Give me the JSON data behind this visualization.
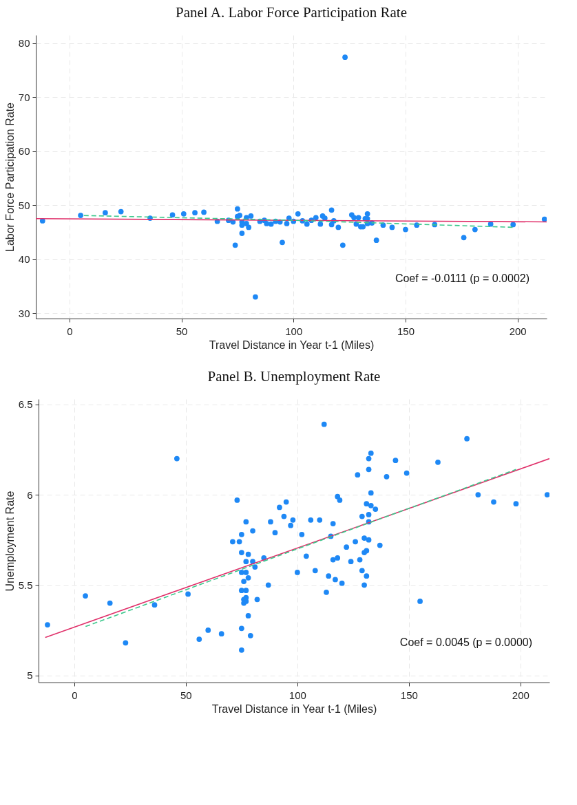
{
  "chart_data": [
    {
      "type": "scatter",
      "title": "Panel A. Labor Force Participation Rate",
      "xlabel": "Travel Distance in Year t-1 (Miles)",
      "ylabel": "Labor Force Participation Rate",
      "xlim": [
        -15,
        213
      ],
      "ylim": [
        29,
        81.5
      ],
      "xticks": [
        0,
        50,
        100,
        150,
        200
      ],
      "yticks": [
        30,
        40,
        50,
        60,
        70,
        80
      ],
      "grid": true,
      "annotations": [
        "Coef =   -0.0111 (p =    0.0002)"
      ],
      "series": [
        {
          "type": "scatter",
          "marker": "circle",
          "color": "#1e88f5",
          "x": [
            -12,
            5,
            16,
            23,
            36,
            46,
            51,
            56,
            60,
            66,
            71,
            73,
            75,
            75,
            76,
            79,
            81,
            77,
            77,
            80,
            79,
            77,
            74,
            83,
            85,
            87,
            88,
            90,
            92,
            94,
            95,
            97,
            98,
            100,
            102,
            104,
            106,
            108,
            110,
            112,
            113,
            114,
            117,
            118,
            117,
            120,
            122,
            126,
            127,
            129,
            128,
            130,
            131,
            133,
            132,
            133,
            133,
            135,
            137,
            140,
            144,
            150,
            155,
            163,
            176,
            181,
            188,
            198,
            212,
            123
          ],
          "values": [
            47.1,
            48.1,
            48.6,
            48.8,
            47.6,
            48.2,
            48.4,
            48.6,
            48.7,
            47.0,
            47.2,
            46.9,
            49.3,
            47.9,
            48.1,
            47.7,
            48.0,
            46.9,
            46.3,
            45.9,
            46.6,
            44.8,
            42.6,
            33.0,
            47.0,
            47.2,
            46.6,
            46.5,
            47.0,
            46.9,
            43.1,
            46.6,
            47.6,
            47.0,
            48.4,
            47.1,
            46.5,
            47.2,
            47.7,
            46.5,
            48.0,
            47.6,
            49.1,
            47.1,
            46.4,
            45.9,
            42.6,
            48.2,
            47.7,
            47.7,
            46.5,
            46.0,
            46.0,
            48.4,
            47.5,
            47.5,
            46.6,
            46.7,
            43.5,
            46.3,
            45.9,
            45.5,
            46.3,
            46.4,
            44.0,
            45.5,
            46.5,
            46.4,
            47.4,
            77.4
          ]
        },
        {
          "type": "line",
          "color": "#e0306a",
          "line_style": "solid",
          "x": [
            -15,
            213
          ],
          "values": [
            47.5,
            46.9
          ]
        },
        {
          "type": "line",
          "color": "#3cc88c",
          "line_style": "dashed",
          "x": [
            5,
            100,
            198
          ],
          "values": [
            48.1,
            47.2,
            45.9
          ]
        }
      ]
    },
    {
      "type": "scatter",
      "title": "Panel B. Unemployment Rate",
      "xlabel": "Travel Distance in Year t-1 (Miles)",
      "ylabel": "Unemployment Rate",
      "xlim": [
        -16,
        213
      ],
      "ylim": [
        4.96,
        6.53
      ],
      "xticks": [
        0,
        50,
        100,
        150,
        200
      ],
      "yticks": [
        {
          "value": 5,
          "label": "5"
        },
        5.5,
        {
          "value": 6,
          "label": "6"
        },
        6.5
      ],
      "grid": true,
      "annotations": [
        "Coef =    0.0045 (p =    0.0000)"
      ],
      "series": [
        {
          "type": "scatter",
          "marker": "circle",
          "color": "#1e88f5",
          "x": [
            -12,
            5,
            16,
            23,
            36,
            46,
            51,
            56,
            60,
            66,
            73,
            75,
            75,
            79,
            78,
            77,
            75,
            74,
            71,
            75,
            78,
            77,
            80,
            81,
            85,
            80,
            75,
            77,
            76,
            78,
            87,
            75,
            77,
            76,
            77,
            77,
            76,
            82,
            88,
            90,
            92,
            95,
            94,
            97,
            98,
            102,
            106,
            110,
            116,
            115,
            112,
            118,
            119,
            104,
            100,
            108,
            114,
            117,
            120,
            113,
            122,
            124,
            126,
            116,
            118,
            128,
            129,
            131,
            130,
            130,
            132,
            130,
            131,
            137,
            129,
            132,
            132,
            131,
            133,
            135,
            133,
            127,
            132,
            132,
            133,
            140,
            144,
            149,
            163,
            176,
            155,
            181,
            188,
            198,
            212
          ],
          "values": [
            5.28,
            5.44,
            5.4,
            5.18,
            5.39,
            6.2,
            5.45,
            5.2,
            5.25,
            5.23,
            5.97,
            5.14,
            5.26,
            5.22,
            5.33,
            5.85,
            5.78,
            5.74,
            5.74,
            5.68,
            5.67,
            5.63,
            5.63,
            5.6,
            5.65,
            5.8,
            5.57,
            5.57,
            5.52,
            5.54,
            5.5,
            5.47,
            5.47,
            5.42,
            5.43,
            5.41,
            5.4,
            5.42,
            5.85,
            5.79,
            5.93,
            5.96,
            5.88,
            5.83,
            5.86,
            5.78,
            5.86,
            5.86,
            5.84,
            5.77,
            6.39,
            5.99,
            5.97,
            5.66,
            5.57,
            5.58,
            5.55,
            5.53,
            5.51,
            5.46,
            5.71,
            5.63,
            5.74,
            5.64,
            5.65,
            5.64,
            5.58,
            5.55,
            5.5,
            5.76,
            5.75,
            5.68,
            5.69,
            5.72,
            5.88,
            5.89,
            5.85,
            5.95,
            5.94,
            5.92,
            6.01,
            6.11,
            6.14,
            6.2,
            6.23,
            6.1,
            6.19,
            6.12,
            6.18,
            6.31,
            5.41,
            6.0,
            5.96,
            5.95,
            6.0
          ]
        },
        {
          "type": "line",
          "color": "#e0306a",
          "line_style": "solid",
          "x": [
            -13,
            213
          ],
          "values": [
            5.21,
            6.2
          ]
        },
        {
          "type": "line",
          "color": "#3cc88c",
          "line_style": "dashed",
          "x": [
            5,
            100,
            198
          ],
          "values": [
            5.27,
            5.7,
            6.14
          ]
        }
      ]
    }
  ]
}
